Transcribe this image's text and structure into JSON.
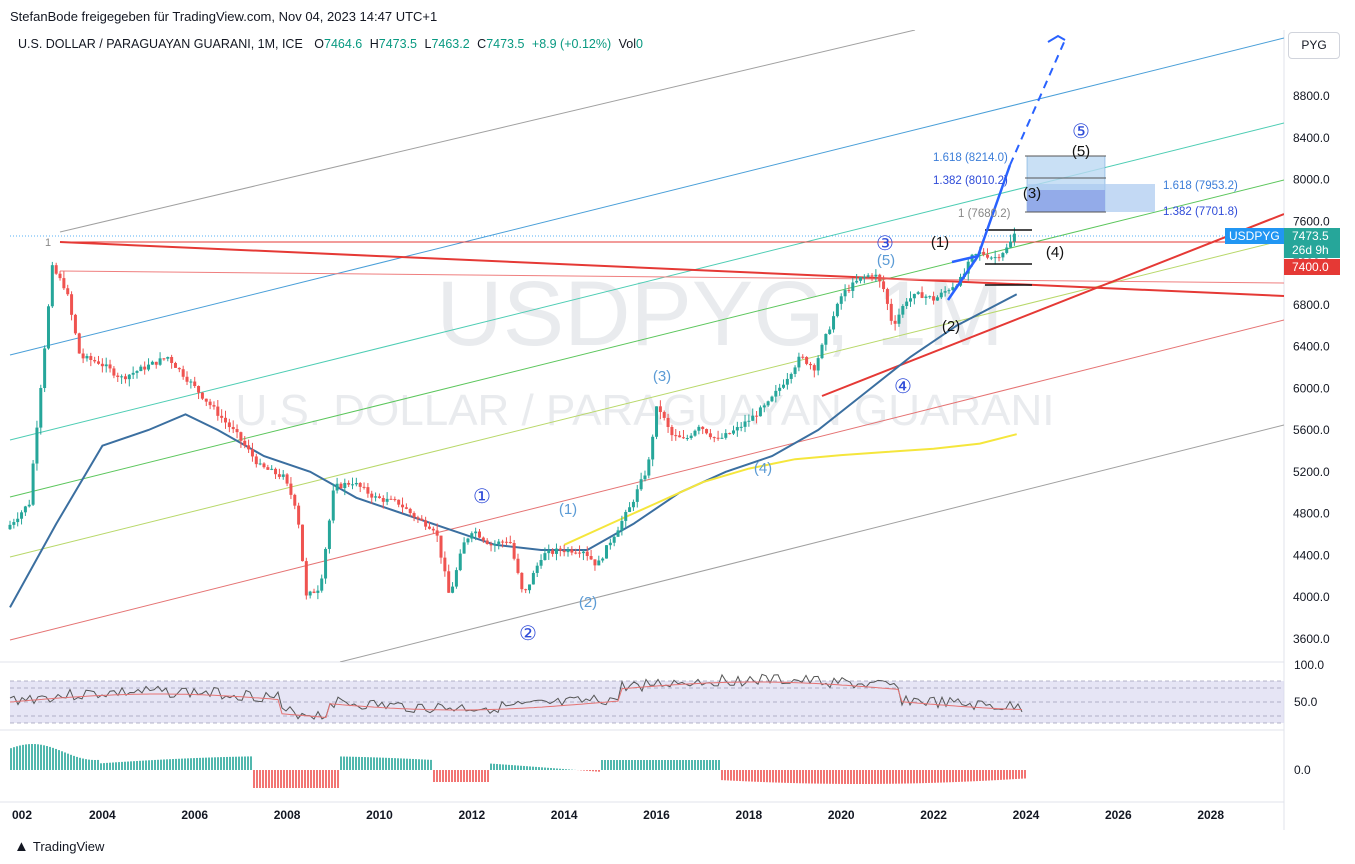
{
  "header": {
    "attribution": "StefanBode freigegeben für TradingView.com, Nov 04, 2023 14:47 UTC+1",
    "currency_button": "PYG"
  },
  "legend": {
    "symbol": "U.S. DOLLAR / PARAGUAYAN GUARANI, 1M, ICE",
    "o_label": "O",
    "o_value": "7464.6",
    "h_label": "H",
    "h_value": "7473.5",
    "l_label": "L",
    "l_value": "7463.2",
    "c_label": "C",
    "c_value": "7473.5",
    "change": "+8.9 (+0.12%)",
    "vol_label": "Vol",
    "vol_value": "0"
  },
  "watermark": {
    "ticker": "USDPYG, 1M",
    "name": "U.S. DOLLAR / PARAGUAYAN GUARANI"
  },
  "footer": {
    "brand": "TradingView"
  },
  "colors": {
    "up": "#26a69a",
    "down": "#ef5350",
    "trend_red": "#e53935",
    "ma_blue": "#3b6fa0",
    "ma_yellow": "#f5e63c",
    "elliott_blue": "#2962ff",
    "axis_text": "#131722"
  },
  "chart_data": {
    "type": "line",
    "title": "U.S. DOLLAR / PARAGUAYAN GUARANI, 1M, ICE",
    "ylim": [
      3600,
      9300
    ],
    "y_ticks": [
      "8800.0",
      "8400.0",
      "8000.0",
      "7600.0",
      "7200.0",
      "6800.0",
      "6400.0",
      "6000.0",
      "5600.0",
      "5200.0",
      "4800.0",
      "4400.0",
      "4000.0",
      "3600.0"
    ],
    "x_ticks": [
      "002",
      "2004",
      "2006",
      "2008",
      "2010",
      "2012",
      "2014",
      "2016",
      "2018",
      "2020",
      "2022",
      "2024",
      "2026",
      "2028"
    ],
    "series": [
      {
        "name": "USDPYG",
        "x": [
          2002.0,
          2002.5,
          2003.0,
          2003.3,
          2003.6,
          2004.0,
          2004.5,
          2005.0,
          2005.5,
          2006.0,
          2006.5,
          2007.0,
          2007.5,
          2008.0,
          2008.3,
          2008.5,
          2008.8,
          2009.1,
          2009.5,
          2010.0,
          2010.5,
          2010.9,
          2011.3,
          2011.6,
          2011.9,
          2012.1,
          2012.5,
          2012.9,
          2013.2,
          2013.6,
          2014.0,
          2014.5,
          2014.8,
          2015.1,
          2015.5,
          2015.9,
          2016.1,
          2016.4,
          2016.7,
          2017.0,
          2017.4,
          2017.8,
          2018.1,
          2018.5,
          2018.9,
          2019.2,
          2019.5,
          2019.8,
          2020.1,
          2020.5,
          2020.8,
          2021.0,
          2021.2,
          2021.5,
          2021.8,
          2022.1,
          2022.4,
          2022.7,
          2022.9,
          2023.1,
          2023.4,
          2023.7,
          2023.83
        ],
        "values": [
          4650,
          4900,
          7150,
          6950,
          6300,
          6250,
          6100,
          6200,
          6300,
          6050,
          5800,
          5550,
          5250,
          5150,
          4850,
          4000,
          4100,
          5050,
          5100,
          4950,
          4900,
          4750,
          4650,
          4000,
          4500,
          4650,
          4500,
          4550,
          4000,
          4400,
          4450,
          4450,
          4300,
          4550,
          4850,
          5250,
          5850,
          5550,
          5500,
          5650,
          5500,
          5600,
          5700,
          5850,
          6100,
          6300,
          6200,
          6550,
          6900,
          7050,
          7100,
          6950,
          6600,
          6850,
          6900,
          6850,
          6950,
          7050,
          7250,
          7300,
          7250,
          7350,
          7473.5
        ]
      },
      {
        "name": "Moving average (blue)",
        "x": [
          2002.0,
          2003.0,
          2004.0,
          2005.0,
          2005.8,
          2006.5,
          2007.5,
          2008.5,
          2009.5,
          2010.5,
          2011.5,
          2012.5,
          2013.5,
          2014.5,
          2015.5,
          2016.5,
          2017.5,
          2018.5,
          2019.5,
          2020.5,
          2021.5,
          2022.5,
          2023.8
        ],
        "values": [
          3900,
          4700,
          5450,
          5600,
          5750,
          5600,
          5350,
          5200,
          4950,
          4800,
          4650,
          4500,
          4450,
          4450,
          4700,
          5000,
          5200,
          5350,
          5600,
          5950,
          6300,
          6600,
          6900
        ]
      },
      {
        "name": "Moving average (yellow)",
        "x": [
          2014.0,
          2015.0,
          2016.0,
          2017.0,
          2018.0,
          2019.0,
          2020.0,
          2021.0,
          2022.0,
          2023.0,
          2023.8
        ],
        "values": [
          4500,
          4700,
          4900,
          5100,
          5230,
          5320,
          5360,
          5390,
          5420,
          5470,
          5560
        ]
      }
    ],
    "annotations": {
      "elliott_labels": [
        "1",
        "①",
        "②",
        "③",
        "④",
        "⑤",
        "(1)",
        "(2)",
        "(3)",
        "(4)",
        "(5)",
        "(1)",
        "(2)",
        "(3)",
        "(4)",
        "(5)"
      ],
      "fib_levels": [
        "1.618 (8214.0)",
        "1.382 (8010.2)",
        "1 (7680.2)",
        "1.618 (7953.2)",
        "1.382 (7701.8)"
      ],
      "price_tag": "USDPYG",
      "price_tag_value": "7473.5",
      "countdown": "26d 9h",
      "horizontal_level": "7400.0"
    },
    "oscillator": {
      "y_ticks": [
        "100.0",
        "50.0"
      ]
    },
    "histogram": {
      "y_ticks": [
        "0.0"
      ]
    }
  }
}
